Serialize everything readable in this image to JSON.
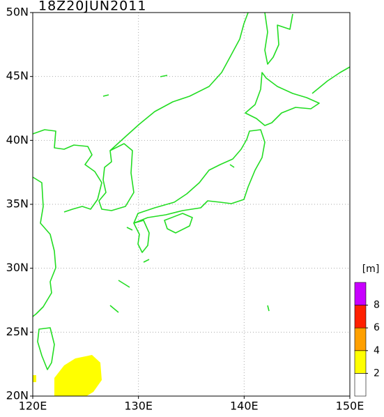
{
  "map": {
    "title": "18Z20JUN2011",
    "xlim": [
      120,
      150
    ],
    "ylim": [
      20,
      50
    ],
    "xticks": [
      {
        "value": 120,
        "label": "120E"
      },
      {
        "value": 130,
        "label": "130E"
      },
      {
        "value": 140,
        "label": "140E"
      },
      {
        "value": 150,
        "label": "150E"
      }
    ],
    "yticks": [
      {
        "value": 20,
        "label": "20N"
      },
      {
        "value": 25,
        "label": "25N"
      },
      {
        "value": 30,
        "label": "30N"
      },
      {
        "value": 35,
        "label": "35N"
      },
      {
        "value": 40,
        "label": "40N"
      },
      {
        "value": 45,
        "label": "45N"
      },
      {
        "value": 50,
        "label": "50N"
      }
    ],
    "grid": true,
    "colorbar": {
      "unit": "[m]",
      "ticks": [
        2,
        4,
        6,
        8
      ],
      "colors": [
        "#ffffff",
        "#ffff00",
        "#ffa000",
        "#ff2000",
        "#c800ff"
      ]
    }
  }
}
